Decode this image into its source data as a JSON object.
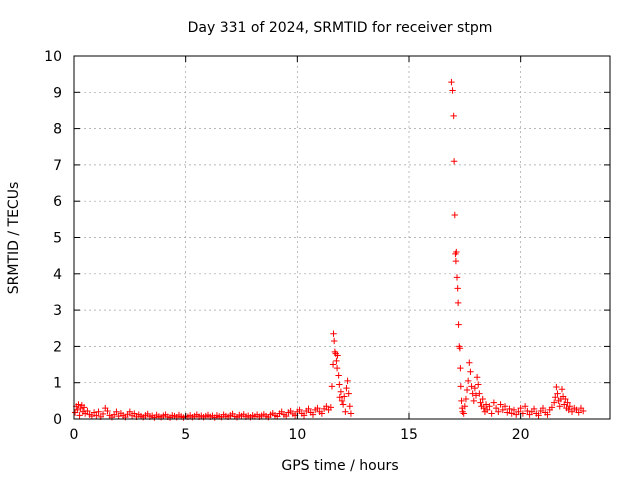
{
  "chart_data": {
    "type": "scatter",
    "title": "Day 331 of 2024, SRMTID for receiver stpm",
    "xlabel": "GPS time / hours",
    "ylabel": "SRMTID / TECUs",
    "xlim": [
      0,
      24
    ],
    "ylim": [
      0,
      10
    ],
    "xticks": [
      0,
      5,
      10,
      15,
      20
    ],
    "xtick_labels": [
      "0",
      "5",
      "10",
      "15",
      "20"
    ],
    "yticks": [
      0,
      1,
      2,
      3,
      4,
      5,
      6,
      7,
      8,
      9,
      10
    ],
    "ytick_labels": [
      "0",
      "1",
      "2",
      "3",
      "4",
      "5",
      "6",
      "7",
      "8",
      "9",
      "10"
    ],
    "grid": true,
    "marker": "+",
    "series": [
      {
        "name": "stpm",
        "color": "#ff0000",
        "points": [
          [
            0.05,
            0.18
          ],
          [
            0.1,
            0.35
          ],
          [
            0.15,
            0.25
          ],
          [
            0.2,
            0.4
          ],
          [
            0.25,
            0.1
          ],
          [
            0.3,
            0.3
          ],
          [
            0.35,
            0.38
          ],
          [
            0.4,
            0.2
          ],
          [
            0.45,
            0.32
          ],
          [
            0.5,
            0.15
          ],
          [
            0.6,
            0.22
          ],
          [
            0.7,
            0.12
          ],
          [
            0.8,
            0.08
          ],
          [
            0.9,
            0.18
          ],
          [
            1.0,
            0.1
          ],
          [
            1.1,
            0.2
          ],
          [
            1.2,
            0.06
          ],
          [
            1.3,
            0.14
          ],
          [
            1.4,
            0.3
          ],
          [
            1.5,
            0.22
          ],
          [
            1.6,
            0.1
          ],
          [
            1.7,
            0.05
          ],
          [
            1.8,
            0.12
          ],
          [
            1.9,
            0.2
          ],
          [
            2.0,
            0.08
          ],
          [
            2.1,
            0.16
          ],
          [
            2.2,
            0.1
          ],
          [
            2.3,
            0.05
          ],
          [
            2.4,
            0.13
          ],
          [
            2.5,
            0.2
          ],
          [
            2.6,
            0.09
          ],
          [
            2.7,
            0.15
          ],
          [
            2.8,
            0.06
          ],
          [
            2.9,
            0.12
          ],
          [
            3.0,
            0.08
          ],
          [
            3.1,
            0.05
          ],
          [
            3.2,
            0.1
          ],
          [
            3.3,
            0.14
          ],
          [
            3.4,
            0.06
          ],
          [
            3.5,
            0.09
          ],
          [
            3.6,
            0.04
          ],
          [
            3.7,
            0.11
          ],
          [
            3.8,
            0.07
          ],
          [
            3.9,
            0.05
          ],
          [
            4.0,
            0.09
          ],
          [
            4.1,
            0.12
          ],
          [
            4.2,
            0.06
          ],
          [
            4.3,
            0.04
          ],
          [
            4.4,
            0.1
          ],
          [
            4.5,
            0.08
          ],
          [
            4.6,
            0.05
          ],
          [
            4.7,
            0.11
          ],
          [
            4.8,
            0.07
          ],
          [
            4.9,
            0.04
          ],
          [
            5.0,
            0.08
          ],
          [
            5.1,
            0.06
          ],
          [
            5.2,
            0.1
          ],
          [
            5.3,
            0.05
          ],
          [
            5.4,
            0.08
          ],
          [
            5.5,
            0.12
          ],
          [
            5.6,
            0.06
          ],
          [
            5.7,
            0.09
          ],
          [
            5.8,
            0.05
          ],
          [
            5.9,
            0.08
          ],
          [
            6.0,
            0.11
          ],
          [
            6.1,
            0.06
          ],
          [
            6.2,
            0.09
          ],
          [
            6.3,
            0.04
          ],
          [
            6.4,
            0.1
          ],
          [
            6.5,
            0.07
          ],
          [
            6.6,
            0.05
          ],
          [
            6.7,
            0.12
          ],
          [
            6.8,
            0.08
          ],
          [
            6.9,
            0.06
          ],
          [
            7.0,
            0.1
          ],
          [
            7.1,
            0.14
          ],
          [
            7.2,
            0.07
          ],
          [
            7.3,
            0.05
          ],
          [
            7.4,
            0.11
          ],
          [
            7.5,
            0.08
          ],
          [
            7.6,
            0.13
          ],
          [
            7.7,
            0.06
          ],
          [
            7.8,
            0.09
          ],
          [
            7.9,
            0.05
          ],
          [
            8.0,
            0.1
          ],
          [
            8.1,
            0.07
          ],
          [
            8.2,
            0.12
          ],
          [
            8.3,
            0.06
          ],
          [
            8.4,
            0.09
          ],
          [
            8.5,
            0.13
          ],
          [
            8.6,
            0.08
          ],
          [
            8.7,
            0.05
          ],
          [
            8.8,
            0.12
          ],
          [
            8.9,
            0.16
          ],
          [
            9.0,
            0.1
          ],
          [
            9.1,
            0.07
          ],
          [
            9.2,
            0.15
          ],
          [
            9.3,
            0.2
          ],
          [
            9.4,
            0.12
          ],
          [
            9.5,
            0.08
          ],
          [
            9.6,
            0.18
          ],
          [
            9.7,
            0.22
          ],
          [
            9.8,
            0.14
          ],
          [
            9.9,
            0.1
          ],
          [
            10.0,
            0.2
          ],
          [
            10.1,
            0.25
          ],
          [
            10.2,
            0.15
          ],
          [
            10.3,
            0.1
          ],
          [
            10.4,
            0.22
          ],
          [
            10.5,
            0.28
          ],
          [
            10.6,
            0.18
          ],
          [
            10.7,
            0.12
          ],
          [
            10.8,
            0.25
          ],
          [
            10.9,
            0.3
          ],
          [
            11.0,
            0.2
          ],
          [
            11.1,
            0.15
          ],
          [
            11.2,
            0.28
          ],
          [
            11.3,
            0.35
          ],
          [
            11.4,
            0.25
          ],
          [
            11.5,
            0.32
          ],
          [
            11.55,
            0.9
          ],
          [
            11.6,
            1.5
          ],
          [
            11.62,
            2.35
          ],
          [
            11.65,
            2.15
          ],
          [
            11.68,
            1.85
          ],
          [
            11.72,
            1.8
          ],
          [
            11.75,
            1.6
          ],
          [
            11.78,
            1.4
          ],
          [
            11.8,
            1.75
          ],
          [
            11.85,
            1.2
          ],
          [
            11.88,
            0.95
          ],
          [
            11.9,
            0.6
          ],
          [
            11.95,
            0.75
          ],
          [
            12.0,
            0.5
          ],
          [
            12.05,
            0.4
          ],
          [
            12.1,
            0.62
          ],
          [
            12.15,
            0.2
          ],
          [
            12.2,
            0.85
          ],
          [
            12.25,
            1.05
          ],
          [
            12.3,
            0.7
          ],
          [
            12.35,
            0.35
          ],
          [
            12.4,
            0.15
          ],
          [
            16.9,
            9.28
          ],
          [
            16.95,
            9.05
          ],
          [
            17.0,
            8.35
          ],
          [
            17.02,
            7.1
          ],
          [
            17.05,
            5.62
          ],
          [
            17.08,
            4.55
          ],
          [
            17.1,
            4.35
          ],
          [
            17.12,
            4.6
          ],
          [
            17.15,
            3.9
          ],
          [
            17.18,
            3.6
          ],
          [
            17.2,
            3.2
          ],
          [
            17.22,
            2.6
          ],
          [
            17.25,
            2.0
          ],
          [
            17.28,
            1.95
          ],
          [
            17.3,
            1.4
          ],
          [
            17.32,
            0.9
          ],
          [
            17.35,
            0.5
          ],
          [
            17.38,
            0.3
          ],
          [
            17.4,
            0.2
          ],
          [
            17.45,
            0.15
          ],
          [
            17.5,
            0.35
          ],
          [
            17.55,
            0.55
          ],
          [
            17.6,
            0.8
          ],
          [
            17.65,
            1.05
          ],
          [
            17.7,
            1.55
          ],
          [
            17.75,
            1.3
          ],
          [
            17.8,
            0.9
          ],
          [
            17.85,
            0.7
          ],
          [
            17.9,
            0.5
          ],
          [
            17.95,
            0.85
          ],
          [
            18.0,
            0.65
          ],
          [
            18.05,
            1.15
          ],
          [
            18.1,
            0.95
          ],
          [
            18.15,
            0.7
          ],
          [
            18.2,
            0.45
          ],
          [
            18.25,
            0.35
          ],
          [
            18.3,
            0.55
          ],
          [
            18.35,
            0.3
          ],
          [
            18.4,
            0.2
          ],
          [
            18.45,
            0.4
          ],
          [
            18.5,
            0.25
          ],
          [
            18.6,
            0.35
          ],
          [
            18.7,
            0.15
          ],
          [
            18.8,
            0.45
          ],
          [
            18.9,
            0.3
          ],
          [
            19.0,
            0.2
          ],
          [
            19.1,
            0.4
          ],
          [
            19.2,
            0.25
          ],
          [
            19.3,
            0.35
          ],
          [
            19.4,
            0.18
          ],
          [
            19.5,
            0.28
          ],
          [
            19.6,
            0.15
          ],
          [
            19.7,
            0.25
          ],
          [
            19.8,
            0.12
          ],
          [
            19.9,
            0.2
          ],
          [
            20.0,
            0.3
          ],
          [
            20.1,
            0.15
          ],
          [
            20.2,
            0.35
          ],
          [
            20.3,
            0.22
          ],
          [
            20.4,
            0.12
          ],
          [
            20.5,
            0.2
          ],
          [
            20.6,
            0.28
          ],
          [
            20.7,
            0.15
          ],
          [
            20.8,
            0.1
          ],
          [
            20.9,
            0.22
          ],
          [
            21.0,
            0.3
          ],
          [
            21.1,
            0.18
          ],
          [
            21.2,
            0.12
          ],
          [
            21.3,
            0.25
          ],
          [
            21.4,
            0.32
          ],
          [
            21.5,
            0.45
          ],
          [
            21.55,
            0.6
          ],
          [
            21.6,
            0.88
          ],
          [
            21.65,
            0.7
          ],
          [
            21.7,
            0.5
          ],
          [
            21.75,
            0.35
          ],
          [
            21.8,
            0.55
          ],
          [
            21.85,
            0.82
          ],
          [
            21.9,
            0.62
          ],
          [
            21.95,
            0.4
          ],
          [
            22.0,
            0.55
          ],
          [
            22.05,
            0.3
          ],
          [
            22.1,
            0.45
          ],
          [
            22.15,
            0.25
          ],
          [
            22.2,
            0.35
          ],
          [
            22.3,
            0.2
          ],
          [
            22.4,
            0.3
          ],
          [
            22.5,
            0.25
          ],
          [
            22.6,
            0.18
          ],
          [
            22.7,
            0.3
          ],
          [
            22.8,
            0.22
          ]
        ]
      }
    ]
  }
}
